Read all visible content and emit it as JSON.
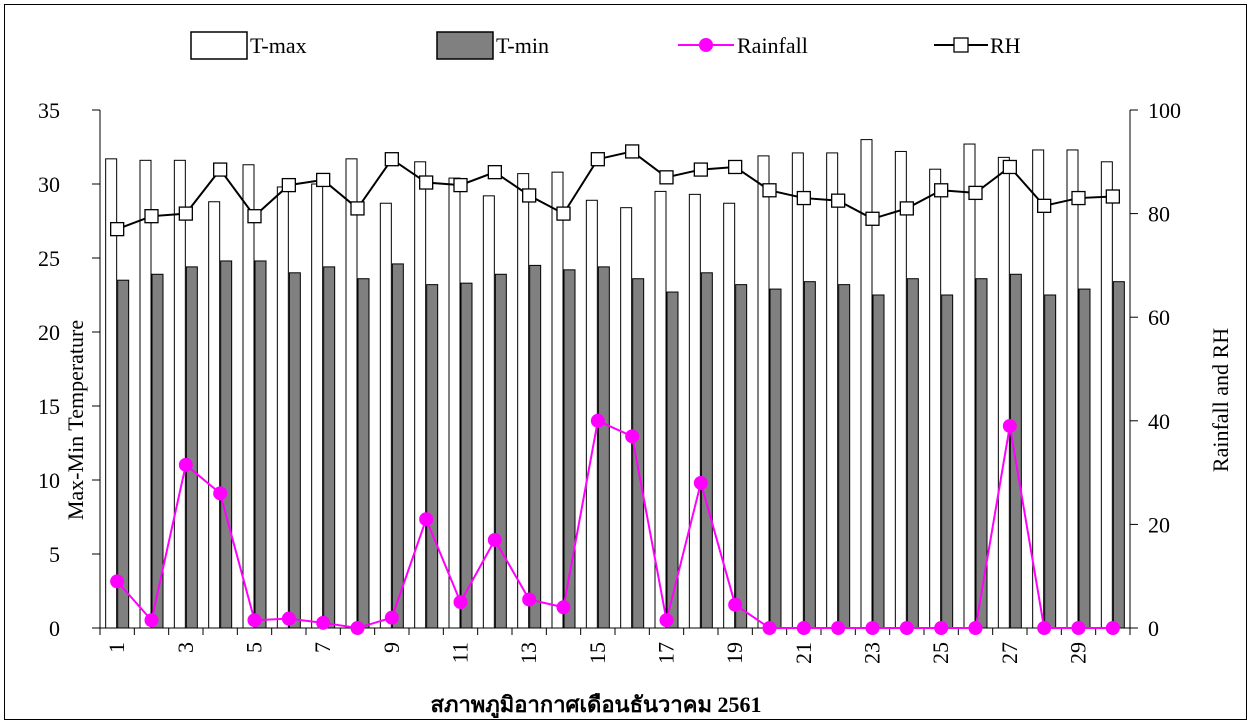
{
  "chart_data": {
    "type": "bar",
    "xlabel": "สภาพภูมิอากาศเดือนธันวาคม 2561",
    "ylabel": "Max-Min Temperature",
    "y2label": "Rainfall and RH",
    "ylim": [
      0,
      35
    ],
    "y2lim": [
      0,
      100
    ],
    "yticks": [
      "0",
      "5",
      "10",
      "15",
      "20",
      "25",
      "30",
      "35"
    ],
    "y2ticks": [
      "0",
      "20",
      "40",
      "60",
      "80",
      "100"
    ],
    "xticks": [
      "1",
      "3",
      "5",
      "7",
      "9",
      "11",
      "13",
      "15",
      "17",
      "19",
      "21",
      "23",
      "25",
      "27",
      "29"
    ],
    "legend_position": "top",
    "grid": false,
    "x": [
      1,
      2,
      3,
      4,
      5,
      6,
      7,
      8,
      9,
      10,
      11,
      12,
      13,
      14,
      15,
      16,
      17,
      18,
      19,
      20,
      21,
      22,
      23,
      24,
      25,
      26,
      27,
      28,
      29,
      30
    ],
    "series": [
      {
        "name": "T-max",
        "kind": "bar",
        "axis": "left",
        "color": "#ffffff",
        "values": [
          31.7,
          31.6,
          31.6,
          28.8,
          31.3,
          29.8,
          30.0,
          31.7,
          28.7,
          31.5,
          30.4,
          29.2,
          30.7,
          30.8,
          28.9,
          28.4,
          29.5,
          29.3,
          28.7,
          31.9,
          32.1,
          32.1,
          33.0,
          32.2,
          31.0,
          32.7,
          31.8,
          32.3,
          32.3,
          31.5
        ]
      },
      {
        "name": "T-min",
        "kind": "bar",
        "axis": "left",
        "color": "#808080",
        "values": [
          23.5,
          23.9,
          24.4,
          24.8,
          24.8,
          24.0,
          24.4,
          23.6,
          24.6,
          23.2,
          23.3,
          23.9,
          24.5,
          24.2,
          24.4,
          23.6,
          22.7,
          24.0,
          23.2,
          22.9,
          23.4,
          23.2,
          22.5,
          23.6,
          22.5,
          23.6,
          23.9,
          22.5,
          22.9,
          23.4
        ]
      },
      {
        "name": "Rainfall",
        "kind": "line",
        "axis": "right",
        "color": "#ff00ff",
        "values": [
          9,
          1.5,
          31.5,
          26,
          1.5,
          1.8,
          1,
          0,
          2,
          21,
          5,
          17,
          5.5,
          4,
          40,
          37,
          1.5,
          28,
          4.5,
          0,
          0,
          0,
          0,
          0,
          0,
          0,
          39,
          0,
          0,
          0
        ]
      },
      {
        "name": "RH",
        "kind": "line",
        "axis": "right",
        "color": "#000000",
        "values": [
          77,
          79.5,
          80,
          88.5,
          79.5,
          85.5,
          86.5,
          81,
          90.5,
          86,
          85.5,
          88,
          83.5,
          80,
          90.5,
          92,
          87,
          88.5,
          89,
          84.5,
          83,
          82.5,
          79,
          81,
          84.5,
          84,
          89,
          81.5,
          83,
          83.3
        ]
      }
    ]
  }
}
